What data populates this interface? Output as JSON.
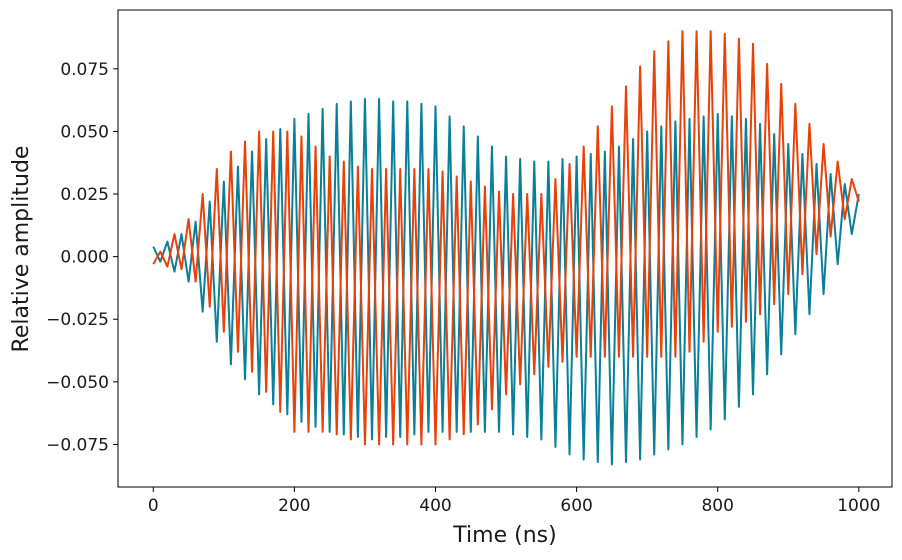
{
  "chart_data": {
    "type": "line",
    "xlabel": "Time (ns)",
    "ylabel": "Relative amplitude",
    "xlim": [
      -50,
      1047
    ],
    "ylim": [
      -0.092,
      0.0985
    ],
    "xticks": [
      0,
      200,
      400,
      600,
      800,
      1000
    ],
    "yticks": [
      {
        "value": -0.075,
        "label": "−0.075"
      },
      {
        "value": -0.05,
        "label": "−0.050"
      },
      {
        "value": -0.025,
        "label": "−0.025"
      },
      {
        "value": 0,
        "label": "0.000"
      },
      {
        "value": 0.025,
        "label": "0.025"
      },
      {
        "value": 0.05,
        "label": "0.050"
      },
      {
        "value": 0.075,
        "label": "0.075"
      }
    ],
    "grid": false,
    "x": [
      0,
      10,
      20,
      30,
      40,
      50,
      60,
      70,
      80,
      90,
      100,
      110,
      120,
      130,
      140,
      150,
      160,
      170,
      180,
      190,
      200,
      210,
      220,
      230,
      240,
      250,
      260,
      270,
      280,
      290,
      300,
      310,
      320,
      330,
      340,
      350,
      360,
      370,
      380,
      390,
      400,
      410,
      420,
      430,
      440,
      450,
      460,
      470,
      480,
      490,
      500,
      510,
      520,
      530,
      540,
      550,
      560,
      570,
      580,
      590,
      600,
      610,
      620,
      630,
      640,
      650,
      660,
      670,
      680,
      690,
      700,
      710,
      720,
      730,
      740,
      750,
      760,
      770,
      780,
      790,
      800,
      810,
      820,
      830,
      840,
      850,
      860,
      870,
      880,
      890,
      900,
      910,
      920,
      930,
      940,
      950,
      960,
      970,
      980,
      990,
      1000
    ],
    "series": [
      {
        "color": "#0a7f99",
        "values": [
          0.004,
          -0.002,
          0.006,
          -0.006,
          0.009,
          -0.01,
          0.014,
          -0.022,
          0.022,
          -0.034,
          0.03,
          -0.043,
          0.036,
          -0.049,
          0.042,
          -0.055,
          0.047,
          -0.059,
          0.051,
          -0.063,
          0.055,
          -0.066,
          0.057,
          -0.068,
          0.059,
          -0.07,
          0.061,
          -0.071,
          0.062,
          -0.072,
          0.063,
          -0.073,
          0.063,
          -0.072,
          0.062,
          -0.072,
          0.062,
          -0.071,
          0.061,
          -0.07,
          0.06,
          -0.07,
          0.056,
          -0.07,
          0.052,
          -0.07,
          0.048,
          -0.07,
          0.044,
          -0.07,
          0.04,
          -0.071,
          0.039,
          -0.072,
          0.038,
          -0.073,
          0.038,
          -0.076,
          0.039,
          -0.079,
          0.04,
          -0.081,
          0.041,
          -0.082,
          0.042,
          -0.083,
          0.044,
          -0.082,
          0.047,
          -0.081,
          0.05,
          -0.079,
          0.052,
          -0.077,
          0.054,
          -0.075,
          0.055,
          -0.072,
          0.056,
          -0.069,
          0.057,
          -0.065,
          0.056,
          -0.06,
          0.055,
          -0.055,
          0.053,
          -0.047,
          0.049,
          -0.039,
          0.045,
          -0.031,
          0.041,
          -0.023,
          0.037,
          -0.015,
          0.033,
          -0.003,
          0.029,
          0.009,
          0.025
        ]
      },
      {
        "color": "#e8410a",
        "values": [
          -0.003,
          0.002,
          -0.004,
          0.009,
          -0.005,
          0.015,
          -0.01,
          0.025,
          -0.02,
          0.035,
          -0.03,
          0.042,
          -0.038,
          0.046,
          -0.046,
          0.05,
          -0.054,
          0.05,
          -0.062,
          0.05,
          -0.07,
          0.048,
          -0.07,
          0.044,
          -0.07,
          0.04,
          -0.071,
          0.038,
          -0.073,
          0.036,
          -0.075,
          0.035,
          -0.075,
          0.035,
          -0.075,
          0.035,
          -0.075,
          0.035,
          -0.075,
          0.035,
          -0.075,
          0.034,
          -0.073,
          0.032,
          -0.071,
          0.03,
          -0.067,
          0.028,
          -0.061,
          0.026,
          -0.055,
          0.025,
          -0.051,
          0.025,
          -0.047,
          0.025,
          -0.044,
          0.031,
          -0.042,
          0.037,
          -0.04,
          0.044,
          -0.04,
          0.052,
          -0.04,
          0.06,
          -0.04,
          0.068,
          -0.04,
          0.076,
          -0.04,
          0.082,
          -0.04,
          0.086,
          -0.04,
          0.09,
          -0.038,
          0.09,
          -0.034,
          0.09,
          -0.03,
          0.089,
          -0.028,
          0.087,
          -0.026,
          0.085,
          -0.023,
          0.077,
          -0.019,
          0.069,
          -0.015,
          0.061,
          -0.007,
          0.053,
          0.001,
          0.045,
          0.008,
          0.038,
          0.015,
          0.031,
          0.022
        ]
      }
    ]
  }
}
